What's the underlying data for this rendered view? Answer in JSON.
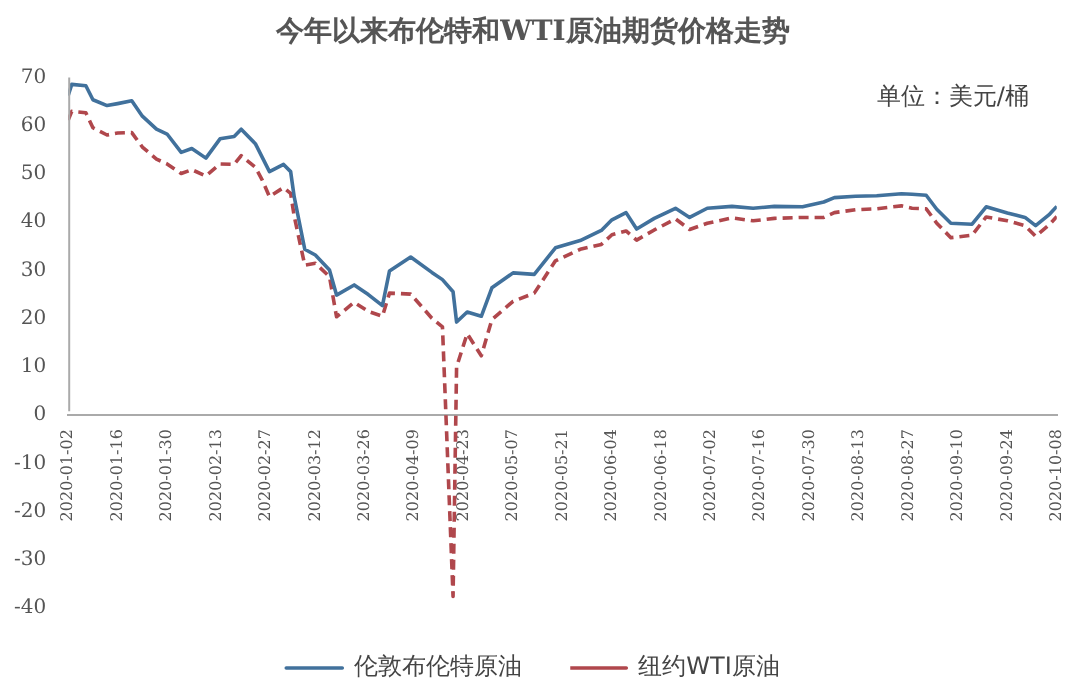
{
  "chart_data": {
    "type": "line",
    "title": "今年以来布伦特和WTI原油期货价格走势",
    "annotations": [
      "单位：美元/桶"
    ],
    "x": [
      "2020-01-02",
      "2020-01-03",
      "2020-01-07",
      "2020-01-09",
      "2020-01-13",
      "2020-01-16",
      "2020-01-20",
      "2020-01-23",
      "2020-01-27",
      "2020-01-30",
      "2020-02-03",
      "2020-02-06",
      "2020-02-10",
      "2020-02-14",
      "2020-02-18",
      "2020-02-20",
      "2020-02-24",
      "2020-02-26",
      "2020-02-28",
      "2020-03-03",
      "2020-03-05",
      "2020-03-06",
      "2020-03-09",
      "2020-03-12",
      "2020-03-16",
      "2020-03-18",
      "2020-03-23",
      "2020-03-27",
      "2020-03-31",
      "2020-04-02",
      "2020-04-08",
      "2020-04-14",
      "2020-04-17",
      "2020-04-20",
      "2020-04-21",
      "2020-04-24",
      "2020-04-28",
      "2020-05-01",
      "2020-05-07",
      "2020-05-13",
      "2020-05-19",
      "2020-05-26",
      "2020-06-01",
      "2020-06-04",
      "2020-06-08",
      "2020-06-11",
      "2020-06-16",
      "2020-06-22",
      "2020-06-26",
      "2020-07-01",
      "2020-07-08",
      "2020-07-14",
      "2020-07-20",
      "2020-07-28",
      "2020-08-03",
      "2020-08-06",
      "2020-08-12",
      "2020-08-18",
      "2020-08-25",
      "2020-08-28",
      "2020-09-01",
      "2020-09-04",
      "2020-09-08",
      "2020-09-14",
      "2020-09-18",
      "2020-09-24",
      "2020-09-29",
      "2020-10-02",
      "2020-10-06",
      "2020-10-08"
    ],
    "series": [
      {
        "name": "伦敦布伦特原油",
        "color": "#41719c",
        "line_style": "solid",
        "values": [
          66.3,
          68.6,
          68.3,
          65.4,
          64.2,
          64.6,
          65.2,
          62.0,
          59.3,
          58.3,
          54.5,
          55.3,
          53.3,
          57.3,
          57.8,
          59.3,
          56.3,
          53.4,
          50.5,
          52.0,
          50.5,
          45.3,
          34.4,
          33.2,
          30.1,
          24.9,
          27.0,
          25.0,
          22.7,
          29.9,
          32.8,
          29.6,
          28.1,
          25.6,
          19.3,
          21.4,
          20.5,
          26.4,
          29.5,
          29.2,
          34.7,
          36.2,
          38.3,
          40.5,
          42.0,
          38.6,
          40.8,
          42.9,
          41.0,
          42.9,
          43.3,
          42.9,
          43.3,
          43.2,
          44.2,
          45.1,
          45.4,
          45.5,
          45.9,
          45.8,
          45.6,
          42.7,
          39.8,
          39.6,
          43.2,
          41.9,
          41.0,
          39.3,
          41.7,
          43.3
        ]
      },
      {
        "name": "纽约WTI原油",
        "color": "#b0474c",
        "line_style": "dashed",
        "values": [
          61.2,
          63.0,
          62.7,
          59.6,
          58.1,
          58.5,
          58.6,
          55.6,
          53.1,
          52.1,
          50.1,
          50.9,
          49.6,
          52.1,
          52.0,
          53.8,
          51.4,
          48.7,
          45.3,
          47.2,
          46.0,
          41.3,
          31.1,
          31.5,
          28.7,
          20.4,
          23.4,
          21.5,
          20.5,
          25.3,
          25.1,
          20.1,
          18.3,
          -37.6,
          10.0,
          16.9,
          12.3,
          19.8,
          23.6,
          25.3,
          32.0,
          34.4,
          35.4,
          37.4,
          38.2,
          36.3,
          38.4,
          40.7,
          38.5,
          39.8,
          40.9,
          40.3,
          40.8,
          41.0,
          41.0,
          42.0,
          42.6,
          42.8,
          43.4,
          42.9,
          42.8,
          39.8,
          36.8,
          37.3,
          41.1,
          40.3,
          39.3,
          37.1,
          39.6,
          41.2
        ]
      }
    ],
    "ylim": [
      -40,
      70
    ],
    "yticks": [
      -40,
      -30,
      -20,
      -10,
      0,
      10,
      20,
      30,
      40,
      50,
      60,
      70
    ],
    "xlim": [
      "2020-01-02",
      "2020-10-08"
    ],
    "xticks": [
      "2020-01-02",
      "2020-01-16",
      "2020-01-30",
      "2020-02-13",
      "2020-02-27",
      "2020-03-12",
      "2020-03-26",
      "2020-04-09",
      "2020-04-23",
      "2020-05-07",
      "2020-05-21",
      "2020-06-04",
      "2020-06-18",
      "2020-07-02",
      "2020-07-16",
      "2020-07-30",
      "2020-08-13",
      "2020-08-27",
      "2020-09-10",
      "2020-09-24",
      "2020-10-08"
    ],
    "grid": false,
    "legend": "bottom",
    "marker": "none"
  }
}
